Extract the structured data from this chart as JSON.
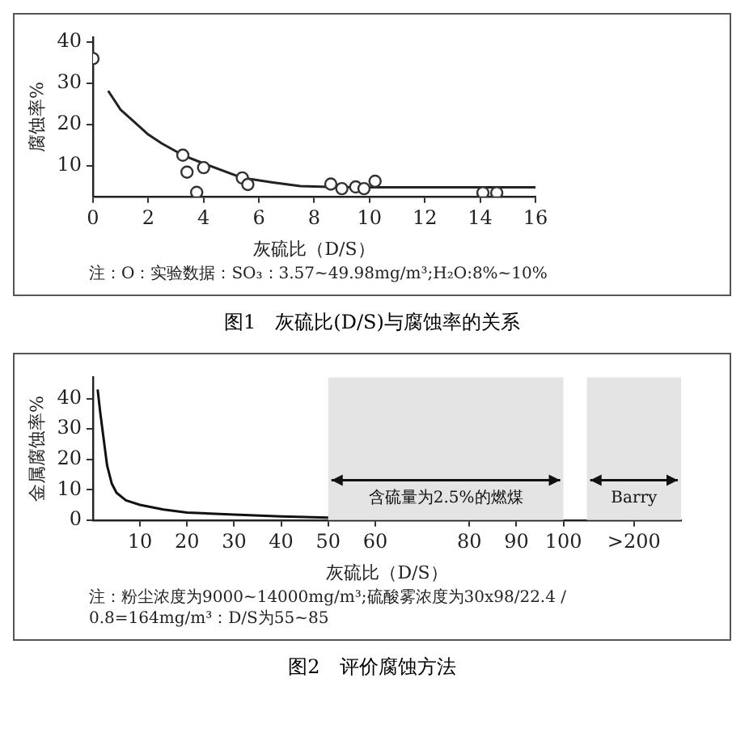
{
  "chart_data": [
    {
      "type": "scatter",
      "xlabel": "灰硫比（D/S）",
      "ylabel": "腐蚀率%",
      "xlim": [
        0,
        16
      ],
      "xticks": [
        0,
        2,
        4,
        6,
        8,
        10,
        12,
        14,
        16
      ],
      "ylim": [
        2.5,
        41
      ],
      "yticks": [
        10,
        20,
        30,
        40
      ],
      "grid": false,
      "legend": false,
      "series": [
        {
          "type": "scatter",
          "marker": "circle",
          "color": "#333333",
          "x": [
            0,
            3.25,
            3.4,
            4.0,
            3.75,
            5.4,
            5.6,
            8.6,
            9.0,
            9.5,
            9.8,
            10.2,
            14.1,
            14.6
          ],
          "values": [
            35.9,
            12.5,
            8.4,
            9.5,
            3.5,
            7.0,
            5.4,
            5.5,
            4.4,
            4.8,
            4.4,
            6.2,
            3.4,
            3.4
          ]
        },
        {
          "type": "line",
          "marker": "none",
          "color": "#222222",
          "x": [
            0.55,
            1.0,
            1.5,
            2.0,
            2.5,
            3.25,
            4.0,
            5.4,
            6.5,
            7.5,
            8.5,
            9.7,
            12,
            16
          ],
          "values": [
            28.1,
            23.5,
            20.5,
            17.5,
            15.3,
            12.5,
            10.5,
            7.0,
            5.9,
            5.0,
            4.8,
            4.7,
            4.7,
            4.7
          ]
        }
      ],
      "annotations": [
        "注：O：实验数据：SO₃：3.57~49.98mg/m³;H₂O:8%~10%",
        "图1　灰硫比(D/S)与腐蚀率的关系"
      ]
    },
    {
      "type": "line",
      "xlabel": "灰硫比（D/S）",
      "ylabel": "金属腐蚀率%",
      "xlim": [
        0,
        125
      ],
      "xticks": [
        10,
        20,
        30,
        40,
        50,
        60,
        80,
        90,
        100,
        {
          "value": 115,
          "label": ">200"
        }
      ],
      "ylim": [
        0,
        47
      ],
      "yticks": [
        0,
        10,
        20,
        30,
        40
      ],
      "grid": false,
      "legend": false,
      "bands": [
        {
          "axis": "x",
          "from": 50,
          "to": 100,
          "label": "含硫量为2.5%的燃煤",
          "color": "#e4e4e4"
        },
        {
          "axis": "x",
          "from": 105,
          "to": 125,
          "label": "Barry",
          "color": "#e4e4e4"
        }
      ],
      "series": [
        {
          "marker": "none",
          "color": "#111111",
          "x": [
            1,
            1.5,
            2,
            3,
            4,
            5,
            7,
            10,
            15,
            20,
            30,
            40,
            50
          ],
          "values": [
            43,
            36,
            30,
            18,
            12,
            9,
            6.5,
            5,
            3.5,
            2.5,
            1.8,
            1.2,
            0.8
          ]
        }
      ],
      "annotations": [
        "注：粉尘浓度为9000~14000mg/m³;硫酸雾浓度为30x98/22.4 / 0.8=164mg/m³：D/S为55~85",
        "图2　评价腐蚀方法"
      ]
    }
  ]
}
